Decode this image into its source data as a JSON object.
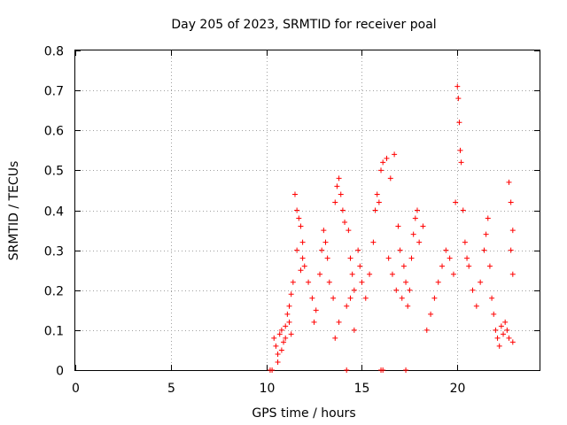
{
  "chart_data": {
    "type": "scatter",
    "title": "Day 205 of 2023, SRMTID for receiver poal",
    "xlabel": "GPS time / hours",
    "ylabel": "SRMTID / TECUs",
    "xlim": [
      0,
      24.3
    ],
    "ylim": [
      0,
      0.8
    ],
    "xticks": [
      0,
      5,
      10,
      15,
      20
    ],
    "yticks": [
      0,
      0.1,
      0.2,
      0.3,
      0.4,
      0.5,
      0.6,
      0.7,
      0.8
    ],
    "marker": "+",
    "color": "#ff0000",
    "grid": true,
    "series": [
      {
        "name": "SRMTID",
        "points": [
          [
            10.2,
            0.0
          ],
          [
            10.3,
            0.0
          ],
          [
            14.2,
            0.0
          ],
          [
            16.0,
            0.0
          ],
          [
            16.1,
            0.0
          ],
          [
            17.3,
            0.0
          ],
          [
            10.4,
            0.08
          ],
          [
            10.5,
            0.06
          ],
          [
            10.6,
            0.04
          ],
          [
            10.7,
            0.09
          ],
          [
            10.8,
            0.05
          ],
          [
            10.9,
            0.07
          ],
          [
            11.0,
            0.11
          ],
          [
            11.1,
            0.14
          ],
          [
            11.2,
            0.16
          ],
          [
            11.3,
            0.19
          ],
          [
            11.4,
            0.22
          ],
          [
            10.6,
            0.02
          ],
          [
            10.8,
            0.1
          ],
          [
            11.0,
            0.08
          ],
          [
            11.2,
            0.12
          ],
          [
            11.3,
            0.09
          ],
          [
            11.5,
            0.44
          ],
          [
            11.6,
            0.4
          ],
          [
            11.7,
            0.38
          ],
          [
            11.8,
            0.36
          ],
          [
            11.9,
            0.32
          ],
          [
            11.6,
            0.3
          ],
          [
            11.8,
            0.25
          ],
          [
            11.9,
            0.28
          ],
          [
            12.0,
            0.26
          ],
          [
            12.2,
            0.22
          ],
          [
            12.4,
            0.18
          ],
          [
            12.5,
            0.12
          ],
          [
            12.6,
            0.15
          ],
          [
            12.8,
            0.24
          ],
          [
            12.9,
            0.3
          ],
          [
            13.0,
            0.35
          ],
          [
            13.1,
            0.32
          ],
          [
            13.2,
            0.28
          ],
          [
            13.3,
            0.22
          ],
          [
            13.5,
            0.18
          ],
          [
            13.6,
            0.42
          ],
          [
            13.7,
            0.46
          ],
          [
            13.8,
            0.48
          ],
          [
            13.9,
            0.44
          ],
          [
            14.0,
            0.4
          ],
          [
            14.1,
            0.37
          ],
          [
            14.3,
            0.35
          ],
          [
            14.4,
            0.28
          ],
          [
            14.5,
            0.24
          ],
          [
            14.6,
            0.2
          ],
          [
            14.2,
            0.16
          ],
          [
            14.4,
            0.18
          ],
          [
            14.6,
            0.1
          ],
          [
            13.6,
            0.08
          ],
          [
            13.8,
            0.12
          ],
          [
            14.8,
            0.3
          ],
          [
            14.9,
            0.26
          ],
          [
            15.0,
            0.22
          ],
          [
            15.2,
            0.18
          ],
          [
            15.4,
            0.24
          ],
          [
            15.6,
            0.32
          ],
          [
            15.7,
            0.4
          ],
          [
            15.8,
            0.44
          ],
          [
            15.9,
            0.42
          ],
          [
            16.0,
            0.5
          ],
          [
            16.1,
            0.52
          ],
          [
            16.3,
            0.53
          ],
          [
            16.5,
            0.48
          ],
          [
            16.7,
            0.54
          ],
          [
            16.9,
            0.36
          ],
          [
            17.0,
            0.3
          ],
          [
            17.2,
            0.26
          ],
          [
            17.3,
            0.22
          ],
          [
            17.5,
            0.2
          ],
          [
            17.7,
            0.34
          ],
          [
            17.8,
            0.38
          ],
          [
            17.9,
            0.4
          ],
          [
            16.4,
            0.28
          ],
          [
            16.6,
            0.24
          ],
          [
            16.8,
            0.2
          ],
          [
            17.1,
            0.18
          ],
          [
            17.4,
            0.16
          ],
          [
            17.6,
            0.28
          ],
          [
            18.0,
            0.32
          ],
          [
            18.2,
            0.36
          ],
          [
            18.4,
            0.1
          ],
          [
            18.6,
            0.14
          ],
          [
            18.8,
            0.18
          ],
          [
            19.0,
            0.22
          ],
          [
            19.2,
            0.26
          ],
          [
            19.4,
            0.3
          ],
          [
            19.6,
            0.28
          ],
          [
            19.8,
            0.24
          ],
          [
            19.9,
            0.42
          ],
          [
            20.0,
            0.71
          ],
          [
            20.05,
            0.68
          ],
          [
            20.1,
            0.62
          ],
          [
            20.15,
            0.55
          ],
          [
            20.2,
            0.52
          ],
          [
            20.3,
            0.4
          ],
          [
            20.4,
            0.32
          ],
          [
            20.5,
            0.28
          ],
          [
            20.6,
            0.26
          ],
          [
            20.8,
            0.2
          ],
          [
            21.0,
            0.16
          ],
          [
            21.2,
            0.22
          ],
          [
            21.4,
            0.3
          ],
          [
            21.5,
            0.34
          ],
          [
            21.6,
            0.38
          ],
          [
            21.7,
            0.26
          ],
          [
            21.8,
            0.18
          ],
          [
            21.9,
            0.14
          ],
          [
            22.0,
            0.1
          ],
          [
            22.1,
            0.08
          ],
          [
            22.2,
            0.06
          ],
          [
            22.3,
            0.11
          ],
          [
            22.4,
            0.09
          ],
          [
            22.5,
            0.12
          ],
          [
            22.6,
            0.1
          ],
          [
            22.7,
            0.47
          ],
          [
            22.8,
            0.42
          ],
          [
            22.9,
            0.35
          ],
          [
            22.8,
            0.3
          ],
          [
            22.9,
            0.24
          ],
          [
            22.7,
            0.08
          ],
          [
            22.9,
            0.07
          ]
        ]
      }
    ]
  }
}
